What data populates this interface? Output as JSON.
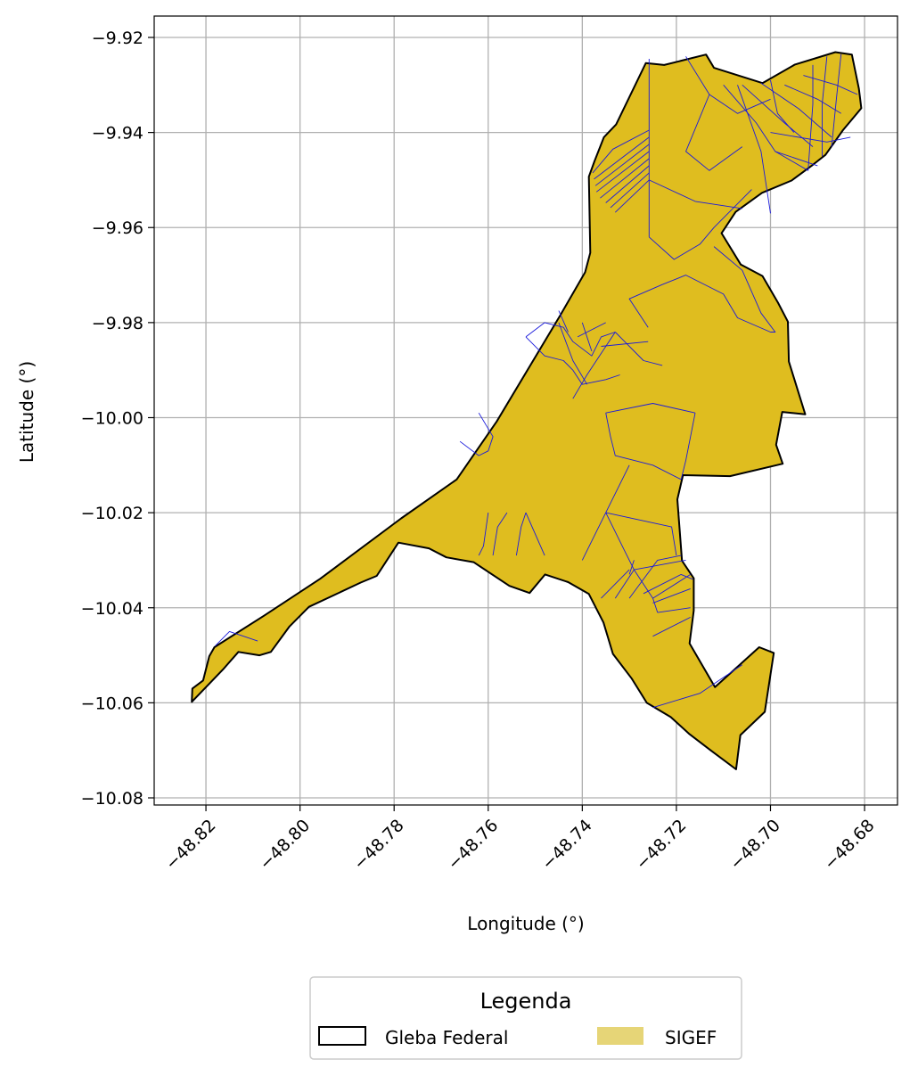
{
  "chart_data": {
    "type": "map",
    "xlabel": "Longitude (°)",
    "ylabel": "Latitude (°)",
    "xlim": [
      -48.831,
      -48.673
    ],
    "ylim": [
      -10.0815,
      -9.9155
    ],
    "xticks": [
      -48.82,
      -48.8,
      -48.78,
      -48.76,
      -48.74,
      -48.72,
      -48.7,
      -48.68
    ],
    "yticks": [
      -9.92,
      -9.94,
      -9.96,
      -9.98,
      -10.0,
      -10.02,
      -10.04,
      -10.06,
      -10.08
    ],
    "xtick_labels": [
      "−48.82",
      "−48.80",
      "−48.78",
      "−48.76",
      "−48.74",
      "−48.72",
      "−48.70",
      "−48.68"
    ],
    "ytick_labels": [
      "−9.92",
      "−9.94",
      "−9.96",
      "−9.98",
      "−10.00",
      "−10.02",
      "−10.04",
      "−10.06",
      "−10.08"
    ],
    "grid": true,
    "legend": {
      "title": "Legenda",
      "placement": "bottom-center",
      "entries": [
        {
          "label": "Gleba Federal",
          "style": "outline",
          "color": "#000000"
        },
        {
          "label": "SIGEF",
          "style": "fill",
          "color": "#e6d577"
        }
      ]
    },
    "colors": {
      "gleba_fill": "#dfbd1f",
      "gleba_edge": "#000000",
      "sigef_edge": "#1a1adc",
      "grid": "#b0b0b0"
    },
    "gleba_outline": [
      [
        -48.8229,
        -10.057
      ],
      [
        -48.8206,
        -10.0553
      ],
      [
        -48.8193,
        -10.0502
      ],
      [
        -48.8182,
        -10.0483
      ],
      [
        -48.8077,
        -10.0417
      ],
      [
        -48.7957,
        -10.0339
      ],
      [
        -48.7785,
        -10.0212
      ],
      [
        -48.7667,
        -10.013
      ],
      [
        -48.7582,
        -10.0008
      ],
      [
        -48.7447,
        -9.9785
      ],
      [
        -48.7394,
        -9.9694
      ],
      [
        -48.7383,
        -9.9653
      ],
      [
        -48.7386,
        -9.9493
      ],
      [
        -48.7374,
        -9.946
      ],
      [
        -48.7354,
        -9.941
      ],
      [
        -48.7328,
        -9.9383
      ],
      [
        -48.7265,
        -9.9254
      ],
      [
        -48.7226,
        -9.9258
      ],
      [
        -48.7137,
        -9.9236
      ],
      [
        -48.712,
        -9.9264
      ],
      [
        -48.7017,
        -9.9296
      ],
      [
        -48.6948,
        -9.9257
      ],
      [
        -48.6862,
        -9.9231
      ],
      [
        -48.6827,
        -9.9236
      ],
      [
        -48.6812,
        -9.9308
      ],
      [
        -48.6807,
        -9.9349
      ],
      [
        -48.6846,
        -9.9395
      ],
      [
        -48.6883,
        -9.9447
      ],
      [
        -48.691,
        -9.9468
      ],
      [
        -48.6955,
        -9.9501
      ],
      [
        -48.7018,
        -9.9527
      ],
      [
        -48.7074,
        -9.9567
      ],
      [
        -48.7104,
        -9.9612
      ],
      [
        -48.7063,
        -9.9678
      ],
      [
        -48.7017,
        -9.9702
      ],
      [
        -48.6984,
        -9.9758
      ],
      [
        -48.6963,
        -9.9798
      ],
      [
        -48.6961,
        -9.9882
      ],
      [
        -48.6926,
        -9.9993
      ],
      [
        -48.6975,
        -9.9988
      ],
      [
        -48.6988,
        -10.0057
      ],
      [
        -48.6974,
        -10.0097
      ],
      [
        -48.7086,
        -10.0123
      ],
      [
        -48.7186,
        -10.0121
      ],
      [
        -48.7198,
        -10.0172
      ],
      [
        -48.7188,
        -10.0301
      ],
      [
        -48.7163,
        -10.0338
      ],
      [
        -48.7163,
        -10.0406
      ],
      [
        -48.7172,
        -10.0475
      ],
      [
        -48.7118,
        -10.0567
      ],
      [
        -48.7024,
        -10.0483
      ],
      [
        -48.6993,
        -10.0495
      ],
      [
        -48.7012,
        -10.0619
      ],
      [
        -48.7064,
        -10.0668
      ],
      [
        -48.7073,
        -10.074
      ],
      [
        -48.7127,
        -10.07
      ],
      [
        -48.7172,
        -10.0666
      ],
      [
        -48.7212,
        -10.063
      ],
      [
        -48.7263,
        -10.06
      ],
      [
        -48.7295,
        -10.0549
      ],
      [
        -48.7335,
        -10.0497
      ],
      [
        -48.7355,
        -10.0431
      ],
      [
        -48.7386,
        -10.0371
      ],
      [
        -48.743,
        -10.0346
      ],
      [
        -48.7479,
        -10.033
      ],
      [
        -48.7512,
        -10.0369
      ],
      [
        -48.7555,
        -10.0354
      ],
      [
        -48.7631,
        -10.0304
      ],
      [
        -48.7689,
        -10.0294
      ],
      [
        -48.7726,
        -10.0275
      ],
      [
        -48.7791,
        -10.0263
      ],
      [
        -48.7837,
        -10.0333
      ],
      [
        -48.7871,
        -10.0347
      ],
      [
        -48.7927,
        -10.0373
      ],
      [
        -48.7981,
        -10.0398
      ],
      [
        -48.8023,
        -10.044
      ],
      [
        -48.8062,
        -10.0493
      ],
      [
        -48.8086,
        -10.05
      ],
      [
        -48.8131,
        -10.0493
      ],
      [
        -48.8164,
        -10.053
      ],
      [
        -48.82,
        -10.0567
      ],
      [
        -48.823,
        -10.0598
      ]
    ],
    "sigef_lines": [
      [
        [
          -48.7378,
          -9.9485
        ],
        [
          -48.7335,
          -9.9435
        ],
        [
          -48.7258,
          -9.9395
        ]
      ],
      [
        [
          -48.7375,
          -9.9498
        ],
        [
          -48.7258,
          -9.941
        ]
      ],
      [
        [
          -48.7372,
          -9.9512
        ],
        [
          -48.7258,
          -9.9425
        ]
      ],
      [
        [
          -48.737,
          -9.9525
        ],
        [
          -48.7258,
          -9.944
        ]
      ],
      [
        [
          -48.7362,
          -9.9538
        ],
        [
          -48.7258,
          -9.9455
        ]
      ],
      [
        [
          -48.735,
          -9.9548
        ],
        [
          -48.7258,
          -9.947
        ]
      ],
      [
        [
          -48.734,
          -9.9558
        ],
        [
          -48.7258,
          -9.9485
        ]
      ],
      [
        [
          -48.733,
          -9.9568
        ],
        [
          -48.7258,
          -9.95
        ]
      ],
      [
        [
          -48.7258,
          -9.9245
        ],
        [
          -48.7258,
          -9.962
        ]
      ],
      [
        [
          -48.7258,
          -9.962
        ],
        [
          -48.7205,
          -9.9667
        ],
        [
          -48.715,
          -9.9635
        ],
        [
          -48.712,
          -9.96
        ],
        [
          -48.704,
          -9.952
        ]
      ],
      [
        [
          -48.7258,
          -9.95
        ],
        [
          -48.716,
          -9.9545
        ],
        [
          -48.706,
          -9.956
        ]
      ],
      [
        [
          -48.718,
          -9.924
        ],
        [
          -48.713,
          -9.932
        ],
        [
          -48.707,
          -9.936
        ],
        [
          -48.7,
          -9.933
        ]
      ],
      [
        [
          -48.713,
          -9.932
        ],
        [
          -48.718,
          -9.944
        ],
        [
          -48.713,
          -9.948
        ],
        [
          -48.706,
          -9.943
        ]
      ],
      [
        [
          -48.707,
          -9.93
        ],
        [
          -48.702,
          -9.944
        ],
        [
          -48.7,
          -9.957
        ]
      ],
      [
        [
          -48.71,
          -9.93
        ],
        [
          -48.703,
          -9.938
        ],
        [
          -48.699,
          -9.944
        ],
        [
          -48.692,
          -9.948
        ]
      ],
      [
        [
          -48.706,
          -9.93
        ],
        [
          -48.697,
          -9.938
        ],
        [
          -48.691,
          -9.943
        ]
      ],
      [
        [
          -48.702,
          -9.9296
        ],
        [
          -48.694,
          -9.935
        ],
        [
          -48.687,
          -9.941
        ]
      ],
      [
        [
          -48.697,
          -9.93
        ],
        [
          -48.69,
          -9.933
        ],
        [
          -48.685,
          -9.936
        ]
      ],
      [
        [
          -48.693,
          -9.928
        ],
        [
          -48.686,
          -9.93
        ],
        [
          -48.6815,
          -9.932
        ]
      ],
      [
        [
          -48.691,
          -9.9258
        ],
        [
          -48.691,
          -9.934
        ],
        [
          -48.692,
          -9.948
        ]
      ],
      [
        [
          -48.688,
          -9.924
        ],
        [
          -48.689,
          -9.934
        ],
        [
          -48.689,
          -9.945
        ]
      ],
      [
        [
          -48.685,
          -9.9235
        ],
        [
          -48.686,
          -9.933
        ],
        [
          -48.687,
          -9.943
        ]
      ],
      [
        [
          -48.7,
          -9.94
        ],
        [
          -48.688,
          -9.942
        ],
        [
          -48.683,
          -9.941
        ]
      ],
      [
        [
          -48.699,
          -9.944
        ],
        [
          -48.69,
          -9.947
        ]
      ],
      [
        [
          -48.7,
          -9.929
        ],
        [
          -48.6985,
          -9.936
        ],
        [
          -48.695,
          -9.94
        ]
      ],
      [
        [
          -48.752,
          -9.983
        ],
        [
          -48.748,
          -9.98
        ],
        [
          -48.744,
          -9.981
        ],
        [
          -48.742,
          -9.984
        ],
        [
          -48.738,
          -9.987
        ],
        [
          -48.736,
          -9.983
        ],
        [
          -48.733,
          -9.982
        ]
      ],
      [
        [
          -48.752,
          -9.983
        ],
        [
          -48.748,
          -9.987
        ],
        [
          -48.744,
          -9.988
        ],
        [
          -48.742,
          -9.99
        ],
        [
          -48.74,
          -9.993
        ],
        [
          -48.735,
          -9.992
        ],
        [
          -48.732,
          -9.991
        ]
      ],
      [
        [
          -48.745,
          -9.98
        ],
        [
          -48.742,
          -9.988
        ],
        [
          -48.739,
          -9.993
        ]
      ],
      [
        [
          -48.74,
          -9.98
        ],
        [
          -48.738,
          -9.986
        ]
      ],
      [
        [
          -48.745,
          -9.9775
        ],
        [
          -48.743,
          -9.982
        ]
      ],
      [
        [
          -48.733,
          -9.982
        ],
        [
          -48.727,
          -9.988
        ],
        [
          -48.723,
          -9.989
        ]
      ],
      [
        [
          -48.733,
          -9.982
        ],
        [
          -48.739,
          -9.991
        ],
        [
          -48.742,
          -9.996
        ]
      ],
      [
        [
          -48.735,
          -9.98
        ],
        [
          -48.741,
          -9.983
        ]
      ],
      [
        [
          -48.736,
          -9.985
        ],
        [
          -48.726,
          -9.984
        ]
      ],
      [
        [
          -48.726,
          -9.981
        ],
        [
          -48.73,
          -9.975
        ],
        [
          -48.723,
          -9.972
        ],
        [
          -48.718,
          -9.97
        ],
        [
          -48.71,
          -9.974
        ],
        [
          -48.707,
          -9.979
        ],
        [
          -48.7,
          -9.982
        ]
      ],
      [
        [
          -48.712,
          -9.964
        ],
        [
          -48.706,
          -9.969
        ],
        [
          -48.702,
          -9.978
        ],
        [
          -48.699,
          -9.982
        ],
        [
          -48.7,
          -9.982
        ]
      ],
      [
        [
          -48.716,
          -9.999
        ],
        [
          -48.718,
          -10.009
        ],
        [
          -48.719,
          -10.013
        ]
      ],
      [
        [
          -48.735,
          -9.999
        ],
        [
          -48.725,
          -9.997
        ],
        [
          -48.716,
          -9.999
        ]
      ],
      [
        [
          -48.735,
          -9.999
        ],
        [
          -48.734,
          -10.004
        ],
        [
          -48.733,
          -10.008
        ],
        [
          -48.725,
          -10.01
        ],
        [
          -48.719,
          -10.013
        ]
      ],
      [
        [
          -48.762,
          -9.999
        ],
        [
          -48.759,
          -10.004
        ],
        [
          -48.76,
          -10.007
        ],
        [
          -48.762,
          -10.008
        ],
        [
          -48.766,
          -10.005
        ]
      ],
      [
        [
          -48.752,
          -10.02
        ],
        [
          -48.753,
          -10.023
        ],
        [
          -48.754,
          -10.029
        ]
      ],
      [
        [
          -48.756,
          -10.02
        ],
        [
          -48.758,
          -10.023
        ],
        [
          -48.759,
          -10.029
        ]
      ],
      [
        [
          -48.76,
          -10.02
        ],
        [
          -48.761,
          -10.027
        ],
        [
          -48.762,
          -10.029
        ]
      ],
      [
        [
          -48.752,
          -10.02
        ],
        [
          -48.748,
          -10.029
        ]
      ],
      [
        [
          -48.74,
          -10.03
        ],
        [
          -48.735,
          -10.02
        ],
        [
          -48.73,
          -10.01
        ]
      ],
      [
        [
          -48.735,
          -10.02
        ],
        [
          -48.721,
          -10.023
        ],
        [
          -48.72,
          -10.029
        ]
      ],
      [
        [
          -48.735,
          -10.02
        ],
        [
          -48.731,
          -10.028
        ],
        [
          -48.729,
          -10.032
        ],
        [
          -48.725,
          -10.038
        ],
        [
          -48.724,
          -10.041
        ]
      ],
      [
        [
          -48.729,
          -10.032
        ],
        [
          -48.718,
          -10.03
        ]
      ],
      [
        [
          -48.736,
          -10.038
        ],
        [
          -48.73,
          -10.032
        ]
      ],
      [
        [
          -48.733,
          -10.038
        ],
        [
          -48.729,
          -10.032
        ]
      ],
      [
        [
          -48.73,
          -10.038
        ],
        [
          -48.724,
          -10.03
        ],
        [
          -48.719,
          -10.029
        ]
      ],
      [
        [
          -48.725,
          -10.038
        ],
        [
          -48.717,
          -10.033
        ]
      ],
      [
        [
          -48.727,
          -10.037
        ],
        [
          -48.719,
          -10.033
        ],
        [
          -48.7165,
          -10.034
        ]
      ],
      [
        [
          -48.725,
          -10.039
        ],
        [
          -48.717,
          -10.036
        ]
      ],
      [
        [
          -48.724,
          -10.041
        ],
        [
          -48.717,
          -10.04
        ]
      ],
      [
        [
          -48.725,
          -10.046
        ],
        [
          -48.717,
          -10.042
        ]
      ],
      [
        [
          -48.725,
          -10.061
        ],
        [
          -48.715,
          -10.058
        ],
        [
          -48.706,
          -10.052
        ]
      ],
      [
        [
          -48.729,
          -10.03
        ],
        [
          -48.73,
          -10.033
        ]
      ],
      [
        [
          -48.818,
          -10.048
        ],
        [
          -48.815,
          -10.045
        ],
        [
          -48.812,
          -10.046
        ],
        [
          -48.809,
          -10.047
        ]
      ]
    ]
  }
}
